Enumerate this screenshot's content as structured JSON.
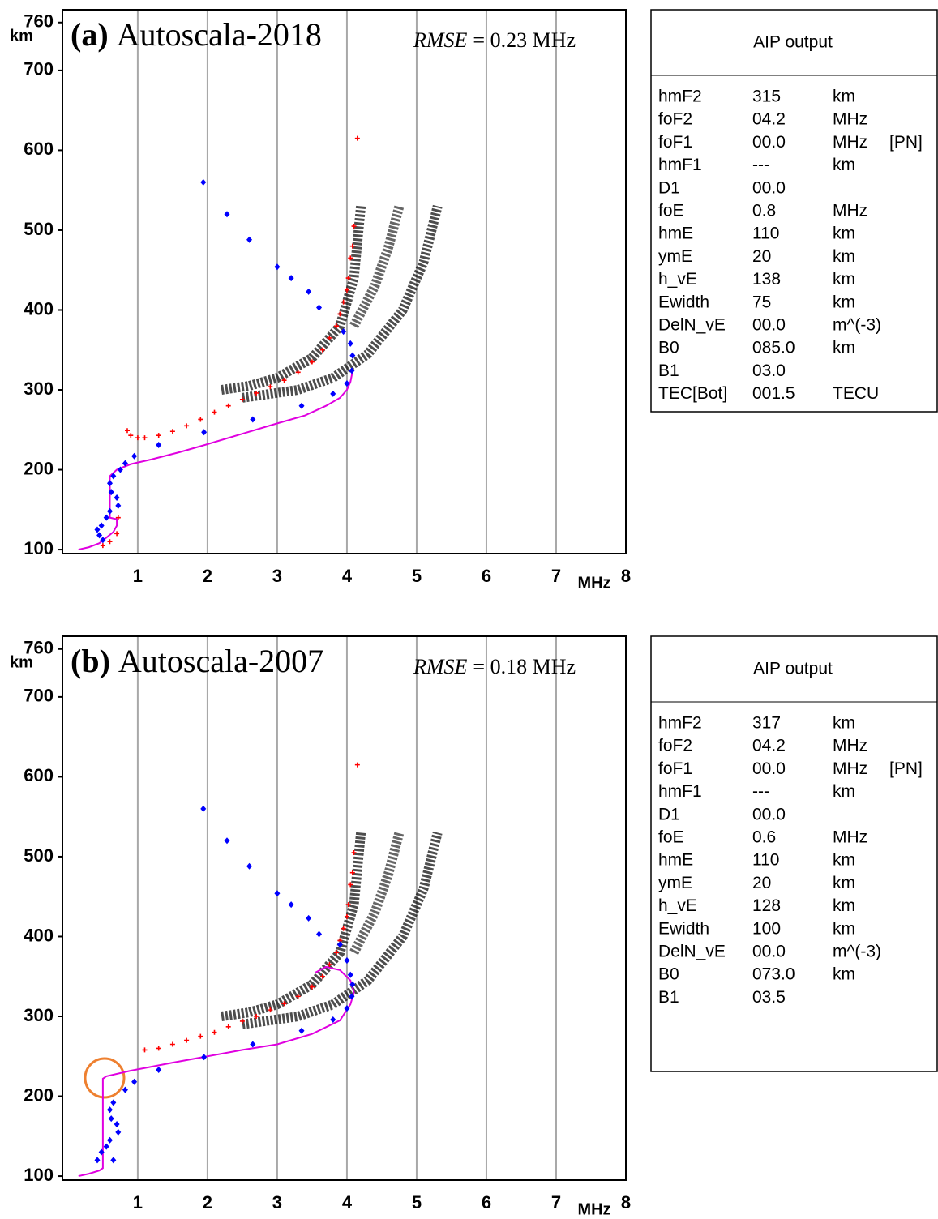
{
  "chart_data": [
    {
      "type": "scatter",
      "label": "(a)",
      "title": "Autoscala-2018",
      "annotation_label": "RMSE",
      "annotation_text": "= 0.23 MHz",
      "xlabel": "MHz",
      "ylabel": "km",
      "xlim": [
        -0.08,
        8
      ],
      "ylim": [
        95,
        776
      ],
      "xticks": [
        1,
        2,
        3,
        4,
        5,
        6,
        7,
        8
      ],
      "yticks": [
        100,
        200,
        300,
        400,
        500,
        600,
        700,
        760
      ],
      "grid": "x",
      "series": [
        {
          "color": "#111111",
          "marker": "band",
          "x": [
            2.2,
            2.6,
            3.0,
            3.5,
            3.9,
            4.1,
            4.2
          ],
          "values": [
            300,
            305,
            315,
            340,
            380,
            440,
            530
          ]
        },
        {
          "color": "#111111",
          "marker": "band",
          "x": [
            2.5,
            3.3,
            3.8,
            4.3,
            4.8,
            5.1,
            5.3
          ],
          "values": [
            290,
            300,
            315,
            345,
            400,
            460,
            530
          ]
        },
        {
          "color": "#333333",
          "marker": "band",
          "x": [
            4.1,
            4.4,
            4.6,
            4.75
          ],
          "values": [
            380,
            430,
            480,
            530
          ]
        },
        {
          "color": "#e000e0",
          "marker": "line",
          "x": [
            0.15,
            0.3,
            0.45,
            0.55,
            0.65,
            0.7,
            0.7,
            0.6,
            0.6,
            0.6,
            0.6,
            0.7,
            0.9,
            1.2,
            1.6,
            2.0,
            2.5,
            3.0,
            3.4,
            3.7,
            3.9,
            4.0,
            4.05,
            4.08
          ],
          "values": [
            100,
            103,
            108,
            115,
            122,
            130,
            138,
            140,
            160,
            180,
            192,
            200,
            207,
            213,
            222,
            232,
            245,
            258,
            268,
            280,
            290,
            300,
            310,
            323
          ]
        },
        {
          "color": "#ff0000",
          "marker": "plus",
          "x": [
            0.5,
            0.6,
            0.7,
            0.72,
            0.85,
            0.9,
            1.0,
            1.1,
            1.3,
            1.5,
            1.7,
            1.9,
            2.1,
            2.3,
            2.5,
            2.7,
            2.9,
            3.1,
            3.3,
            3.5,
            3.65,
            3.75,
            3.85,
            3.9,
            3.95,
            4.0,
            4.02,
            4.05,
            4.08,
            4.1,
            4.15
          ],
          "values": [
            105,
            110,
            120,
            140,
            249,
            243,
            240,
            240,
            243,
            248,
            255,
            263,
            272,
            280,
            288,
            296,
            304,
            312,
            322,
            335,
            350,
            365,
            380,
            395,
            410,
            425,
            440,
            465,
            480,
            505,
            615
          ]
        },
        {
          "color": "#0000ff",
          "marker": "diamond",
          "x": [
            1.94,
            2.28,
            2.6,
            3.0,
            3.2,
            3.45,
            3.6,
            3.95,
            4.05,
            4.08,
            4.07,
            4.0,
            3.8,
            3.35,
            2.65,
            1.95,
            1.3,
            0.95,
            0.82,
            0.75,
            0.65,
            0.6,
            0.62,
            0.7,
            0.72,
            0.6,
            0.55,
            0.48,
            0.42,
            0.45,
            0.5
          ],
          "values": [
            560,
            520,
            488,
            454,
            440,
            423,
            403,
            373,
            358,
            343,
            324,
            308,
            295,
            280,
            263,
            247,
            231,
            217,
            208,
            200,
            192,
            183,
            172,
            165,
            155,
            148,
            140,
            130,
            125,
            118,
            112
          ]
        }
      ]
    },
    {
      "type": "scatter",
      "label": "(b)",
      "title": "Autoscala-2007",
      "annotation_label": "RMSE",
      "annotation_text": "= 0.18 MHz",
      "xlabel": "MHz",
      "ylabel": "km",
      "xlim": [
        -0.08,
        8
      ],
      "ylim": [
        95,
        776
      ],
      "xticks": [
        1,
        2,
        3,
        4,
        5,
        6,
        7,
        8
      ],
      "yticks": [
        100,
        200,
        300,
        400,
        500,
        600,
        700,
        760
      ],
      "grid": "x",
      "series": [
        {
          "color": "#111111",
          "marker": "band",
          "x": [
            2.2,
            2.6,
            3.0,
            3.5,
            3.9,
            4.1,
            4.2
          ],
          "values": [
            300,
            305,
            315,
            340,
            380,
            440,
            530
          ]
        },
        {
          "color": "#111111",
          "marker": "band",
          "x": [
            2.5,
            3.3,
            3.8,
            4.3,
            4.8,
            5.1,
            5.3
          ],
          "values": [
            290,
            300,
            315,
            345,
            400,
            460,
            530
          ]
        },
        {
          "color": "#333333",
          "marker": "band",
          "x": [
            4.1,
            4.4,
            4.6,
            4.75
          ],
          "values": [
            380,
            430,
            480,
            530
          ]
        },
        {
          "color": "#e000e0",
          "marker": "line",
          "x": [
            0.15,
            0.3,
            0.45,
            0.5,
            0.5,
            0.5,
            0.55,
            0.9,
            1.5,
            2.5,
            3.0,
            3.5,
            3.9,
            4.05,
            4.1,
            4.05,
            3.9,
            3.7,
            3.55
          ],
          "values": [
            100,
            103,
            107,
            110,
            160,
            222,
            225,
            232,
            242,
            258,
            265,
            278,
            295,
            315,
            330,
            345,
            358,
            362,
            355
          ]
        },
        {
          "color": "#ff0000",
          "marker": "plus",
          "x": [
            1.1,
            1.3,
            1.5,
            1.7,
            1.9,
            2.1,
            2.3,
            2.5,
            2.7,
            2.9,
            3.1,
            3.3,
            3.5,
            3.65,
            3.75,
            3.85,
            3.9,
            3.95,
            4.0,
            4.02,
            4.05,
            4.08,
            4.1,
            4.15
          ],
          "values": [
            258,
            260,
            265,
            270,
            275,
            280,
            287,
            294,
            300,
            308,
            316,
            325,
            337,
            350,
            365,
            380,
            395,
            410,
            425,
            440,
            465,
            480,
            505,
            615
          ]
        },
        {
          "color": "#0000ff",
          "marker": "diamond",
          "x": [
            1.94,
            2.28,
            2.6,
            3.0,
            3.2,
            3.45,
            3.6,
            3.9,
            4.0,
            4.05,
            4.08,
            4.07,
            4.0,
            3.8,
            3.35,
            2.65,
            1.95,
            1.3,
            0.95,
            0.82,
            0.65,
            0.6,
            0.62,
            0.7,
            0.72,
            0.6,
            0.55,
            0.48,
            0.42,
            0.65
          ],
          "values": [
            560,
            520,
            488,
            454,
            440,
            423,
            403,
            390,
            370,
            352,
            340,
            325,
            310,
            296,
            282,
            265,
            249,
            233,
            218,
            208,
            192,
            183,
            172,
            165,
            155,
            145,
            137,
            130,
            120,
            120
          ]
        }
      ]
    }
  ],
  "aip_tables": [
    {
      "title": "AIP output",
      "rows": [
        [
          "hmF2",
          "315",
          "km"
        ],
        [
          "foF2",
          "04.2",
          "MHz"
        ],
        [
          "foF1",
          "00.0",
          "MHz",
          "[PN]"
        ],
        [
          "hmF1",
          "---",
          "km"
        ],
        [
          "D1",
          "00.0"
        ],
        [
          "foE",
          "0.8",
          "MHz"
        ],
        [
          "hmE",
          "110",
          "km"
        ],
        [
          "ymE",
          "20",
          "km"
        ],
        [
          "h_vE",
          "138",
          "km"
        ],
        [
          "Ewidth",
          "75",
          "km"
        ],
        [
          "DelN_vE",
          "00.0",
          "m^(-3)"
        ],
        [
          "B0",
          "085.0",
          "km"
        ],
        [
          "B1",
          "03.0"
        ],
        [
          "TEC[Bot]",
          "001.5",
          "TECU"
        ]
      ]
    },
    {
      "title": "AIP output",
      "rows": [
        [
          "hmF2",
          "317",
          "km"
        ],
        [
          "foF2",
          "04.2",
          "MHz"
        ],
        [
          "foF1",
          "00.0",
          "MHz",
          "[PN]"
        ],
        [
          "hmF1",
          "---",
          "km"
        ],
        [
          "D1",
          "00.0"
        ],
        [
          "foE",
          "0.6",
          "MHz"
        ],
        [
          "hmE",
          "110",
          "km"
        ],
        [
          "ymE",
          "20",
          "km"
        ],
        [
          "h_vE",
          "128",
          "km"
        ],
        [
          "Ewidth",
          "100",
          "km"
        ],
        [
          "DelN_vE",
          "00.0",
          "m^(-3)"
        ],
        [
          "B0",
          "073.0",
          "km"
        ],
        [
          "B1",
          "03.5"
        ]
      ]
    }
  ]
}
